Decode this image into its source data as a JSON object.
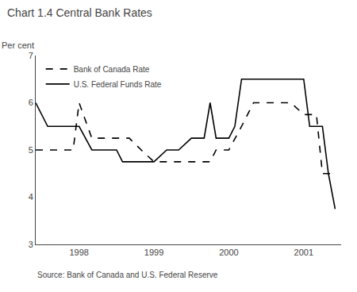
{
  "chart_data": {
    "type": "line",
    "title": "Chart 1.4 Central Bank Rates",
    "ylabel": "Per cent",
    "source": "Source: Bank of Canada and U.S. Federal Reserve",
    "xlim": [
      1997.42,
      2001.5
    ],
    "xticks": [
      1998,
      1999,
      2000,
      2001
    ],
    "ylim": [
      3,
      7
    ],
    "yticks": [
      3,
      4,
      5,
      6,
      7
    ],
    "grid": false,
    "legend": "upper left",
    "series": [
      {
        "name": "Bank of Canada Rate",
        "color": "#000000",
        "line_style": "dashed",
        "x": [
          1997.42,
          1997.58,
          1997.75,
          1997.92,
          1998.0,
          1998.17,
          1998.33,
          1998.5,
          1998.67,
          1998.83,
          1999.0,
          1999.17,
          1999.33,
          1999.5,
          1999.67,
          1999.75,
          1999.83,
          2000.0,
          2000.17,
          2000.33,
          2000.5,
          2000.67,
          2000.75,
          2000.83,
          2001.0,
          2001.08,
          2001.17,
          2001.25,
          2001.42
        ],
        "values": [
          5.0,
          5.0,
          5.0,
          5.0,
          6.0,
          5.25,
          5.25,
          5.25,
          5.25,
          5.0,
          4.75,
          4.75,
          4.75,
          4.75,
          4.75,
          4.75,
          5.0,
          5.0,
          5.5,
          6.0,
          6.0,
          6.0,
          6.0,
          6.0,
          5.75,
          5.75,
          5.75,
          4.5,
          4.5
        ]
      },
      {
        "name": "U.S. Federal Funds Rate",
        "color": "#000000",
        "line_style": "solid",
        "x": [
          1997.42,
          1997.58,
          1997.75,
          1997.92,
          1998.0,
          1998.17,
          1998.33,
          1998.5,
          1998.58,
          1998.67,
          1998.83,
          1999.0,
          1999.17,
          1999.33,
          1999.5,
          1999.67,
          1999.75,
          1999.83,
          2000.0,
          2000.08,
          2000.17,
          2000.33,
          2000.5,
          2000.67,
          2000.75,
          2000.83,
          2001.0,
          2001.08,
          2001.17,
          2001.25,
          2001.33,
          2001.42
        ],
        "values": [
          6.0,
          5.5,
          5.5,
          5.5,
          5.5,
          5.0,
          5.0,
          5.0,
          4.75,
          4.75,
          4.75,
          4.75,
          5.0,
          5.0,
          5.25,
          5.25,
          6.0,
          5.25,
          5.25,
          5.5,
          6.5,
          6.5,
          6.5,
          6.5,
          6.5,
          6.5,
          6.5,
          5.5,
          5.5,
          5.5,
          4.5,
          3.75
        ]
      }
    ]
  }
}
